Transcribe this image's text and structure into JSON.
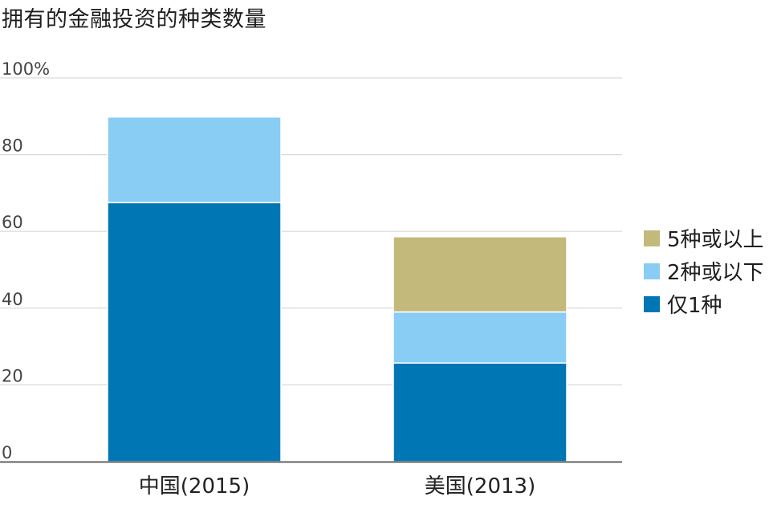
{
  "title": "拥有的金融投资的种类数量",
  "chart_data": {
    "type": "bar",
    "stacked": true,
    "categories": [
      "中国(2015)",
      "美国(2013)"
    ],
    "series": [
      {
        "name": "仅1种",
        "values": [
          67.5,
          25.7
        ],
        "color": "#0077b4"
      },
      {
        "name": "2种或以下",
        "values": [
          22.3,
          13.3
        ],
        "color": "#89ccf4"
      },
      {
        "name": "5种或以上",
        "values": [
          0,
          19.6
        ],
        "color": "#c2b97b"
      }
    ],
    "ylim": [
      0,
      100
    ],
    "yticks": [
      0,
      20,
      40,
      60,
      80,
      100
    ],
    "ytick_labels": [
      "0",
      "20",
      "40",
      "60",
      "80",
      "100%"
    ],
    "grid": true,
    "legend_placement": "right",
    "legend_order": [
      "5种或以上",
      "2种或以下",
      "仅1种"
    ]
  }
}
